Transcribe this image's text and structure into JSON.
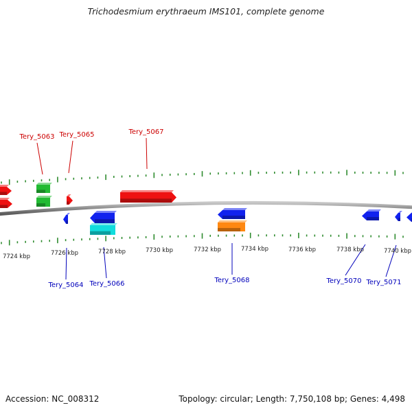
{
  "title": "Trichodesmium erythraeum IMS101, complete genome",
  "footer": {
    "accession": "Accession: NC_008312",
    "summary": "Topology: circular; Length: 7,750,108 bp; Genes: 4,498"
  },
  "colors": {
    "forward_label": "#cc0000",
    "reverse_label": "#0000bb",
    "tick": "#2e8b2e",
    "backbone": "#8a8a8a",
    "red": "#ee1111",
    "green": "#22bb33",
    "blue": "#1122ee",
    "cyan": "#11dddd",
    "orange": "#ff8811"
  },
  "scale_labels": [
    "7724 kbp",
    "7726 kbp",
    "7728 kbp",
    "7730 kbp",
    "7732 kbp",
    "7734 kbp",
    "7736 kbp",
    "7738 kbp",
    "7740 kbp"
  ],
  "gene_labels": [
    {
      "name": "Tery_5063",
      "strand": "forward"
    },
    {
      "name": "Tery_5065",
      "strand": "forward"
    },
    {
      "name": "Tery_5067",
      "strand": "forward"
    },
    {
      "name": "Tery_5064",
      "strand": "reverse"
    },
    {
      "name": "Tery_5066",
      "strand": "reverse"
    },
    {
      "name": "Tery_5068",
      "strand": "reverse"
    },
    {
      "name": "Tery_5070",
      "strand": "reverse"
    },
    {
      "name": "Tery_5071",
      "strand": "reverse"
    }
  ],
  "features": [
    {
      "color": "red",
      "direction": "right"
    },
    {
      "color": "green",
      "direction": "none"
    },
    {
      "color": "red",
      "direction": "right"
    },
    {
      "color": "green",
      "direction": "none"
    },
    {
      "color": "red",
      "direction": "right"
    },
    {
      "color": "red",
      "direction": "right"
    },
    {
      "color": "blue",
      "direction": "left"
    },
    {
      "color": "blue",
      "direction": "left"
    },
    {
      "color": "cyan",
      "direction": "none"
    },
    {
      "color": "blue",
      "direction": "left"
    },
    {
      "color": "orange",
      "direction": "none"
    },
    {
      "color": "blue",
      "direction": "left"
    },
    {
      "color": "blue",
      "direction": "left"
    },
    {
      "color": "blue",
      "direction": "left"
    }
  ]
}
